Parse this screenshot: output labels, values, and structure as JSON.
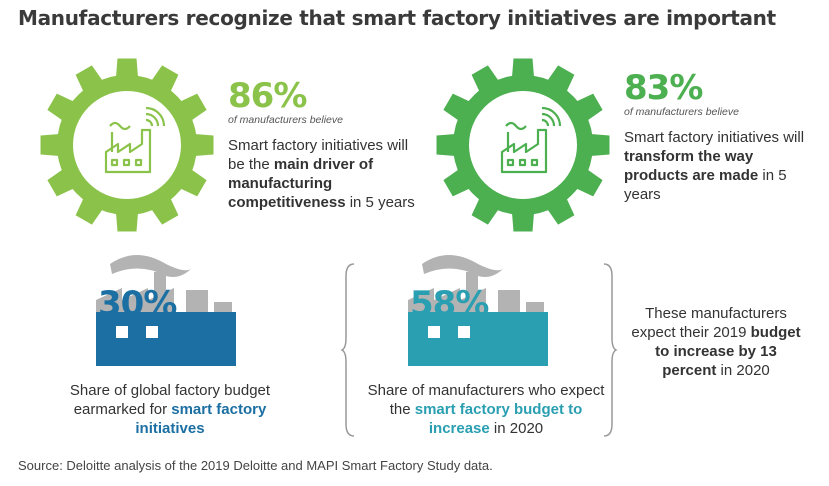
{
  "title": "Manufacturers recognize that smart factory initiatives are important",
  "colors": {
    "light_green": "#8bc34a",
    "green": "#4caf50",
    "blue": "#1b6fa3",
    "teal": "#2a9fb2",
    "gray": "#b3b3b3"
  },
  "stats": [
    {
      "percent": "86%",
      "sub": "of manufacturers believe",
      "text_before": "Smart factory initiatives will be the ",
      "text_bold": "main driver of manufacturing competitiveness",
      "text_after": " in 5 years",
      "icon": "factory-wifi-icon"
    },
    {
      "percent": "83%",
      "sub": "of manufacturers believe",
      "text_before": "Smart factory initiatives will ",
      "text_bold": "transform the way products are made",
      "text_after": " in 5 years",
      "icon": "factory-wifi-icon"
    }
  ],
  "factories": [
    {
      "percent": "30%",
      "caption_before": "Share of global factory budget earmarked for ",
      "caption_bold": "smart factory initiatives",
      "caption_after": ""
    },
    {
      "percent": "58%",
      "caption_before": "Share of manufacturers who expect the ",
      "caption_bold": "smart factory budget to increase",
      "caption_after": " in 2020"
    }
  ],
  "side_note": {
    "before": "These manufacturers expect their 2019 ",
    "bold": "budget to increase by 13 percent",
    "after": " in 2020"
  },
  "source": "Source: Deloitte analysis of the 2019 Deloitte and MAPI Smart Factory Study data."
}
